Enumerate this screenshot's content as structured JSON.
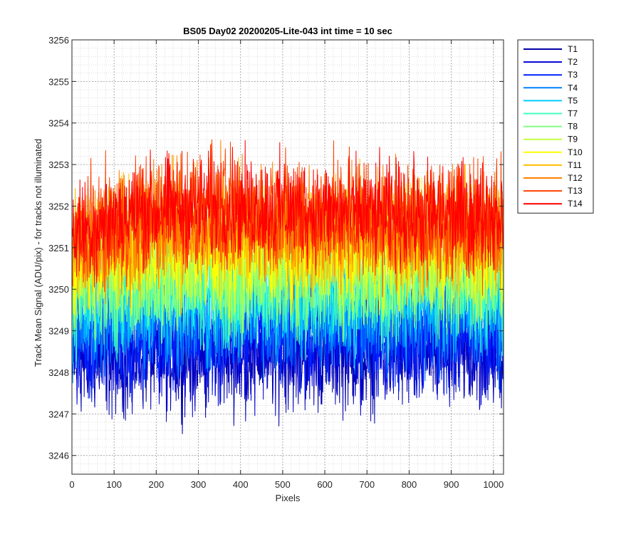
{
  "chart_data": {
    "type": "line",
    "title": "BS05 Day02 20200205-Lite-043 int time = 10 sec",
    "xlabel": "Pixels",
    "ylabel": "Track Mean Signal (ADU/pix) - for tracks not illuminated",
    "xlim": [
      0,
      1024
    ],
    "ylim": [
      3245.55,
      3256
    ],
    "x_ticks": [
      0,
      100,
      200,
      300,
      400,
      500,
      600,
      700,
      800,
      900,
      1000
    ],
    "y_ticks": [
      3246,
      3247,
      3248,
      3249,
      3250,
      3251,
      3252,
      3253,
      3254,
      3255,
      3256
    ],
    "grid": "major and minor, dotted",
    "legend_position": "outside top-right",
    "series": [
      {
        "name": "T1",
        "color": "#0000AA",
        "baseline": 3248.5,
        "spread": 1.2
      },
      {
        "name": "T2",
        "color": "#0000D4",
        "baseline": 3248.7,
        "spread": 1.2
      },
      {
        "name": "T3",
        "color": "#0022FF",
        "baseline": 3249.0,
        "spread": 1.2
      },
      {
        "name": "T4",
        "color": "#0080FF",
        "baseline": 3249.4,
        "spread": 1.2
      },
      {
        "name": "T5",
        "color": "#00CCFF",
        "baseline": 3249.8,
        "spread": 1.2
      },
      {
        "name": "T7",
        "color": "#40FFBF",
        "baseline": 3250.1,
        "spread": 1.2
      },
      {
        "name": "T8",
        "color": "#80FF80",
        "baseline": 3250.4,
        "spread": 1.2
      },
      {
        "name": "T9",
        "color": "#BFFF40",
        "baseline": 3250.7,
        "spread": 1.2
      },
      {
        "name": "T10",
        "color": "#FFFF00",
        "baseline": 3251.0,
        "spread": 1.2
      },
      {
        "name": "T11",
        "color": "#FFBF00",
        "baseline": 3251.3,
        "spread": 1.2
      },
      {
        "name": "T12",
        "color": "#FF8000",
        "baseline": 3251.6,
        "spread": 1.2
      },
      {
        "name": "T13",
        "color": "#FF4000",
        "baseline": 3251.8,
        "spread": 1.2
      },
      {
        "name": "T14",
        "color": "#FF0000",
        "baseline": 3251.9,
        "spread": 1.1
      }
    ]
  }
}
